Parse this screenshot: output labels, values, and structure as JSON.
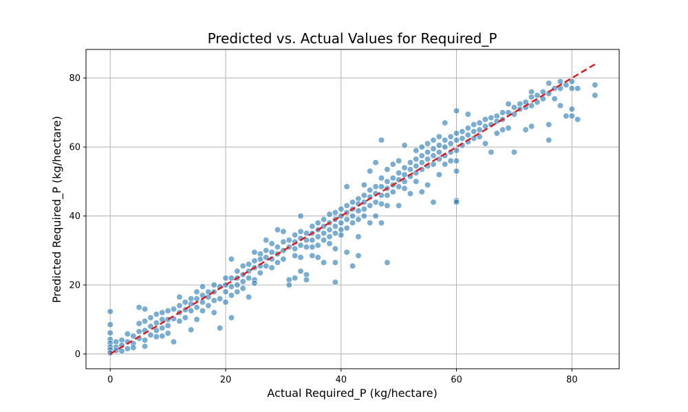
{
  "chart_data": {
    "type": "scatter",
    "title": "Predicted vs. Actual Values for Required_P",
    "xlabel": "Actual Required_P (kg/hectare)",
    "ylabel": "Predicted Required_P (kg/hectare)",
    "xlim": [
      -4.2,
      88.2
    ],
    "ylim": [
      -4.3,
      88.3
    ],
    "xticks": [
      0,
      20,
      40,
      60,
      80
    ],
    "yticks": [
      0,
      20,
      40,
      60,
      80
    ],
    "grid": true,
    "legend": "none",
    "reference_line": {
      "from": [
        0,
        0
      ],
      "to": [
        84,
        84
      ],
      "style": "dashed",
      "color": "#e31a1c"
    },
    "point_color": "#1f77b4",
    "point_opacity": 0.6,
    "points": [
      [
        0,
        12.3
      ],
      [
        0,
        8.5
      ],
      [
        0,
        6.1
      ],
      [
        0,
        4.2
      ],
      [
        0,
        3.1
      ],
      [
        0,
        2.0
      ],
      [
        0,
        1.2
      ],
      [
        0,
        0.3
      ],
      [
        1,
        3.5
      ],
      [
        1,
        2.0
      ],
      [
        1,
        1.0
      ],
      [
        2,
        4.0
      ],
      [
        2,
        2.5
      ],
      [
        2,
        0.8
      ],
      [
        3,
        5.8
      ],
      [
        3,
        3.5
      ],
      [
        3,
        1.5
      ],
      [
        4,
        5.2
      ],
      [
        4,
        3.0
      ],
      [
        4,
        1.8
      ],
      [
        5,
        13.5
      ],
      [
        5,
        8.8
      ],
      [
        5,
        6.5
      ],
      [
        5,
        4.5
      ],
      [
        6,
        13.0
      ],
      [
        6,
        9.5
      ],
      [
        6,
        6.8
      ],
      [
        6,
        4.0
      ],
      [
        6,
        2.2
      ],
      [
        7,
        10.5
      ],
      [
        7,
        8.0
      ],
      [
        7,
        5.5
      ],
      [
        8,
        11.5
      ],
      [
        8,
        9.0
      ],
      [
        8,
        6.8
      ],
      [
        8,
        5.0
      ],
      [
        9,
        12.0
      ],
      [
        9,
        10.0
      ],
      [
        9,
        7.5
      ],
      [
        9,
        5.2
      ],
      [
        10,
        12.5
      ],
      [
        10,
        10.0
      ],
      [
        10,
        8.2
      ],
      [
        10,
        6.0
      ],
      [
        11,
        13.0
      ],
      [
        11,
        10.2
      ],
      [
        11,
        3.5
      ],
      [
        12,
        16.5
      ],
      [
        12,
        14.0
      ],
      [
        12,
        12.0
      ],
      [
        12,
        9.5
      ],
      [
        13,
        15.0
      ],
      [
        13,
        12.8
      ],
      [
        13,
        10.5
      ],
      [
        14,
        16.0
      ],
      [
        14,
        14.5
      ],
      [
        14,
        12.5
      ],
      [
        14,
        7.0
      ],
      [
        15,
        18.0
      ],
      [
        15,
        16.0
      ],
      [
        15,
        13.5
      ],
      [
        15,
        10.0
      ],
      [
        16,
        19.5
      ],
      [
        16,
        17.0
      ],
      [
        16,
        15.0
      ],
      [
        16,
        12.5
      ],
      [
        17,
        18.0
      ],
      [
        17,
        16.5
      ],
      [
        17,
        14.0
      ],
      [
        18,
        20.0
      ],
      [
        18,
        18.0
      ],
      [
        18,
        15.5
      ],
      [
        18,
        12.0
      ],
      [
        19,
        19.5
      ],
      [
        19,
        16.0
      ],
      [
        19,
        7.5
      ],
      [
        20,
        22.0
      ],
      [
        20,
        20.0
      ],
      [
        20,
        18.0
      ],
      [
        20,
        15.0
      ],
      [
        21,
        27.5
      ],
      [
        21,
        22.0
      ],
      [
        21,
        19.5
      ],
      [
        21,
        17.0
      ],
      [
        21,
        10.5
      ],
      [
        22,
        24.0
      ],
      [
        22,
        22.0
      ],
      [
        22,
        20.0
      ],
      [
        22,
        18.0
      ],
      [
        23,
        25.5
      ],
      [
        23,
        23.0
      ],
      [
        23,
        21.0
      ],
      [
        23,
        19.0
      ],
      [
        24,
        26.0
      ],
      [
        24,
        24.0
      ],
      [
        24,
        22.0
      ],
      [
        24,
        16.5
      ],
      [
        25,
        29.5
      ],
      [
        25,
        27.0
      ],
      [
        25,
        25.0
      ],
      [
        25,
        21.5
      ],
      [
        25,
        20.5
      ],
      [
        26,
        29.0
      ],
      [
        26,
        27.5
      ],
      [
        26,
        25.5
      ],
      [
        26,
        23.5
      ],
      [
        27,
        33.0
      ],
      [
        27,
        30.0
      ],
      [
        27,
        28.0
      ],
      [
        27,
        25.5
      ],
      [
        28,
        32.0
      ],
      [
        28,
        29.5
      ],
      [
        28,
        27.5
      ],
      [
        28,
        25.0
      ],
      [
        29,
        36.0
      ],
      [
        29,
        31.0
      ],
      [
        29,
        29.0
      ],
      [
        29,
        26.5
      ],
      [
        30,
        35.5
      ],
      [
        30,
        32.5
      ],
      [
        30,
        30.0
      ],
      [
        30,
        27.5
      ],
      [
        31,
        33.0
      ],
      [
        31,
        31.0
      ],
      [
        31,
        21.5
      ],
      [
        31,
        20.0
      ],
      [
        32,
        34.5
      ],
      [
        32,
        32.5
      ],
      [
        32,
        30.5
      ],
      [
        32,
        28.5
      ],
      [
        32,
        22.0
      ],
      [
        33,
        40.0
      ],
      [
        33,
        35.5
      ],
      [
        33,
        33.5
      ],
      [
        33,
        31.5
      ],
      [
        33,
        28.0
      ],
      [
        33,
        24.0
      ],
      [
        34,
        35.0
      ],
      [
        34,
        33.0
      ],
      [
        34,
        31.0
      ],
      [
        34,
        23.0
      ],
      [
        34,
        21.5
      ],
      [
        35,
        37.0
      ],
      [
        35,
        35.0
      ],
      [
        35,
        33.0
      ],
      [
        35,
        31.0
      ],
      [
        35,
        28.5
      ],
      [
        36,
        38.0
      ],
      [
        36,
        36.0
      ],
      [
        36,
        34.0
      ],
      [
        36,
        31.5
      ],
      [
        36,
        28.0
      ],
      [
        37,
        39.0
      ],
      [
        37,
        37.0
      ],
      [
        37,
        35.0
      ],
      [
        37,
        33.0
      ],
      [
        37,
        26.5
      ],
      [
        38,
        40.5
      ],
      [
        38,
        38.0
      ],
      [
        38,
        36.0
      ],
      [
        38,
        34.0
      ],
      [
        38,
        32.0
      ],
      [
        39,
        41.0
      ],
      [
        39,
        39.0
      ],
      [
        39,
        37.0
      ],
      [
        39,
        35.0
      ],
      [
        39,
        30.5
      ],
      [
        39,
        26.5
      ],
      [
        39,
        20.8
      ],
      [
        40,
        42.0
      ],
      [
        40,
        40.0
      ],
      [
        40,
        38.0
      ],
      [
        40,
        36.0
      ],
      [
        40,
        34.5
      ],
      [
        41,
        48.5
      ],
      [
        41,
        43.0
      ],
      [
        41,
        41.0
      ],
      [
        41,
        39.0
      ],
      [
        41,
        36.5
      ],
      [
        41,
        29.5
      ],
      [
        42,
        44.0
      ],
      [
        42,
        42.0
      ],
      [
        42,
        40.0
      ],
      [
        42,
        38.0
      ],
      [
        42,
        25.5
      ],
      [
        43,
        45.0
      ],
      [
        43,
        43.5
      ],
      [
        43,
        41.5
      ],
      [
        43,
        39.0
      ],
      [
        43,
        34.0
      ],
      [
        43,
        28.5
      ],
      [
        44,
        49.0
      ],
      [
        44,
        46.0
      ],
      [
        44,
        44.0
      ],
      [
        44,
        42.0
      ],
      [
        44,
        40.0
      ],
      [
        45,
        53.0
      ],
      [
        45,
        47.5
      ],
      [
        45,
        45.5
      ],
      [
        45,
        43.0
      ],
      [
        45,
        38.0
      ],
      [
        46,
        55.5
      ],
      [
        46,
        48.5
      ],
      [
        46,
        46.5
      ],
      [
        46,
        44.0
      ],
      [
        46,
        40.0
      ],
      [
        47,
        62.0
      ],
      [
        47,
        51.0
      ],
      [
        47,
        48.5
      ],
      [
        47,
        46.0
      ],
      [
        47,
        43.5
      ],
      [
        47,
        38.0
      ],
      [
        48,
        53.5
      ],
      [
        48,
        50.0
      ],
      [
        48,
        48.0
      ],
      [
        48,
        46.0
      ],
      [
        48,
        43.0
      ],
      [
        48,
        26.5
      ],
      [
        49,
        55.0
      ],
      [
        49,
        51.0
      ],
      [
        49,
        49.0
      ],
      [
        49,
        47.0
      ],
      [
        50,
        56.0
      ],
      [
        50,
        52.5
      ],
      [
        50,
        50.5
      ],
      [
        50,
        48.5
      ],
      [
        50,
        43.0
      ],
      [
        51,
        60.5
      ],
      [
        51,
        54.0
      ],
      [
        51,
        52.0
      ],
      [
        51,
        50.0
      ],
      [
        51,
        48.0
      ],
      [
        52,
        55.5
      ],
      [
        52,
        53.5
      ],
      [
        52,
        51.5
      ],
      [
        52,
        46.5
      ],
      [
        53,
        59.0
      ],
      [
        53,
        56.5
      ],
      [
        53,
        54.5
      ],
      [
        53,
        52.5
      ],
      [
        53,
        50.0
      ],
      [
        54,
        60.0
      ],
      [
        54,
        57.5
      ],
      [
        54,
        55.5
      ],
      [
        54,
        53.5
      ],
      [
        54,
        47.0
      ],
      [
        55,
        61.0
      ],
      [
        55,
        58.5
      ],
      [
        55,
        56.5
      ],
      [
        55,
        54.5
      ],
      [
        55,
        49.0
      ],
      [
        56,
        62.0
      ],
      [
        56,
        59.5
      ],
      [
        56,
        57.5
      ],
      [
        56,
        55.0
      ],
      [
        56,
        44.0
      ],
      [
        57,
        63.0
      ],
      [
        57,
        60.5
      ],
      [
        57,
        58.5
      ],
      [
        57,
        56.5
      ],
      [
        57,
        52.0
      ],
      [
        58,
        67.0
      ],
      [
        58,
        62.0
      ],
      [
        58,
        60.0
      ],
      [
        58,
        57.5
      ],
      [
        58,
        55.0
      ],
      [
        59,
        63.0
      ],
      [
        59,
        61.0
      ],
      [
        59,
        58.5
      ],
      [
        59,
        56.0
      ],
      [
        60,
        70.5
      ],
      [
        60,
        64.0
      ],
      [
        60,
        62.0
      ],
      [
        60,
        59.0
      ],
      [
        60,
        56.0
      ],
      [
        60,
        53.0
      ],
      [
        60,
        44.5
      ],
      [
        60,
        44.0
      ],
      [
        61,
        64.5
      ],
      [
        61,
        62.5
      ],
      [
        61,
        60.5
      ],
      [
        62,
        69.5
      ],
      [
        62,
        65.5
      ],
      [
        62,
        63.5
      ],
      [
        62,
        61.5
      ],
      [
        63,
        66.5
      ],
      [
        63,
        64.5
      ],
      [
        63,
        62.5
      ],
      [
        64,
        67.0
      ],
      [
        64,
        65.0
      ],
      [
        64,
        63.0
      ],
      [
        65,
        68.0
      ],
      [
        65,
        66.0
      ],
      [
        65,
        61.0
      ],
      [
        66,
        68.5
      ],
      [
        66,
        66.5
      ],
      [
        66,
        58.5
      ],
      [
        67,
        69.0
      ],
      [
        67,
        67.5
      ],
      [
        67,
        64.0
      ],
      [
        68,
        70.0
      ],
      [
        68,
        68.0
      ],
      [
        68,
        65.0
      ],
      [
        69,
        72.5
      ],
      [
        69,
        70.0
      ],
      [
        69,
        65.5
      ],
      [
        70,
        71.5
      ],
      [
        70,
        69.5
      ],
      [
        70,
        58.5
      ],
      [
        71,
        72.5
      ],
      [
        71,
        71.0
      ],
      [
        72,
        73.0
      ],
      [
        72,
        71.5
      ],
      [
        72,
        65.0
      ],
      [
        73,
        76.0
      ],
      [
        73,
        74.5
      ],
      [
        73,
        72.0
      ],
      [
        73,
        66.0
      ],
      [
        74,
        75.0
      ],
      [
        74,
        73.0
      ],
      [
        75,
        76.0
      ],
      [
        75,
        74.0
      ],
      [
        76,
        78.5
      ],
      [
        76,
        75.5
      ],
      [
        76,
        66.5
      ],
      [
        76,
        62.0
      ],
      [
        77,
        77.0
      ],
      [
        77,
        74.0
      ],
      [
        78,
        79.0
      ],
      [
        78,
        77.0
      ],
      [
        78,
        72.0
      ],
      [
        79,
        78.0
      ],
      [
        79,
        69.0
      ],
      [
        80,
        79.0
      ],
      [
        80,
        77.0
      ],
      [
        80,
        71.0
      ],
      [
        80,
        69.0
      ],
      [
        81,
        77.0
      ],
      [
        81,
        68.0
      ],
      [
        84,
        78.0
      ],
      [
        84,
        75.0
      ]
    ]
  }
}
